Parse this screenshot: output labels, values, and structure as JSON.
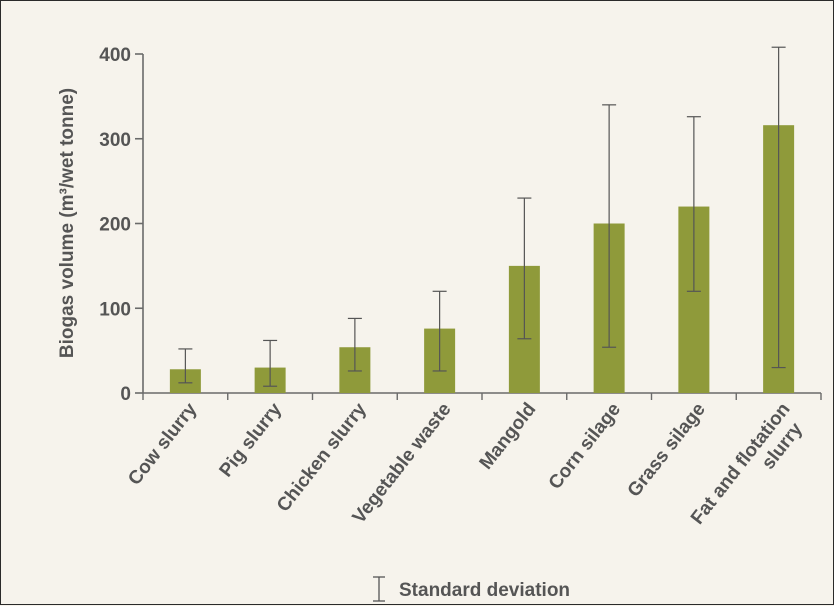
{
  "chart_data": {
    "type": "bar",
    "title": "",
    "xlabel": "",
    "ylabel": "Biogas volume (m³/wet tonne)",
    "ylim": [
      0,
      400
    ],
    "yticks": [
      0,
      100,
      200,
      300,
      400
    ],
    "grid": false,
    "categories": [
      [
        "Cow slurry"
      ],
      [
        "Pig slurry"
      ],
      [
        "Chicken slurry"
      ],
      [
        "Vegetable waste"
      ],
      [
        "Mangold"
      ],
      [
        "Corn silage"
      ],
      [
        "Grass silage"
      ],
      [
        "Fat and flotation",
        "slurry"
      ]
    ],
    "series": [
      {
        "values": [
          28,
          30,
          54,
          76,
          150,
          200,
          220,
          316
        ],
        "error_low": [
          12,
          8,
          26,
          26,
          64,
          54,
          120,
          30
        ],
        "error_high": [
          52,
          62,
          88,
          120,
          230,
          340,
          326,
          408
        ],
        "color": "#8f9a3a"
      }
    ],
    "legend": {
      "label": "Standard deviation",
      "placement": "bottom-center"
    }
  }
}
